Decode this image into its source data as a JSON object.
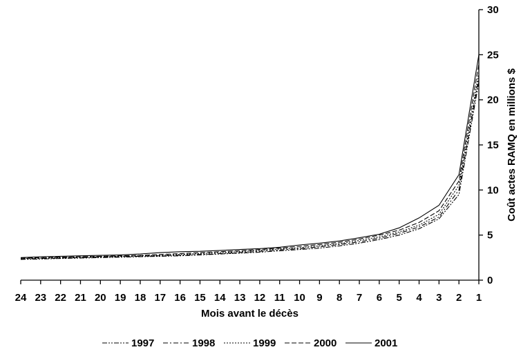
{
  "chart_data": {
    "type": "line",
    "title": "",
    "xlabel": "Mois avant le décès",
    "ylabel": "Coût actes RAMQ en millions $",
    "y_axis_side": "right",
    "x_reversed": true,
    "ylim": [
      0,
      30
    ],
    "y_ticks": [
      0,
      5,
      10,
      15,
      20,
      25,
      30
    ],
    "x": [
      24,
      23,
      22,
      21,
      20,
      19,
      18,
      17,
      16,
      15,
      14,
      13,
      12,
      11,
      10,
      9,
      8,
      7,
      6,
      5,
      4,
      3,
      2,
      1
    ],
    "grid": false,
    "legend_position": "bottom",
    "series": [
      {
        "name": "1997",
        "dash": "dash-dot-dot",
        "values": [
          2.3,
          2.35,
          2.4,
          2.45,
          2.5,
          2.55,
          2.6,
          2.65,
          2.7,
          2.8,
          2.9,
          3.0,
          3.1,
          3.25,
          3.4,
          3.55,
          3.8,
          4.1,
          4.5,
          5.0,
          5.7,
          6.8,
          9.5,
          22.0
        ]
      },
      {
        "name": "1998",
        "dash": "dash-dot",
        "values": [
          2.35,
          2.4,
          2.45,
          2.5,
          2.55,
          2.6,
          2.65,
          2.7,
          2.78,
          2.85,
          2.95,
          3.05,
          3.2,
          3.35,
          3.5,
          3.7,
          3.95,
          4.25,
          4.65,
          5.2,
          5.9,
          7.0,
          10.0,
          22.5
        ]
      },
      {
        "name": "1999",
        "dash": "dotted",
        "values": [
          2.4,
          2.45,
          2.5,
          2.55,
          2.6,
          2.65,
          2.7,
          2.75,
          2.85,
          2.95,
          3.05,
          3.15,
          3.3,
          3.45,
          3.6,
          3.8,
          4.05,
          4.4,
          4.8,
          5.35,
          6.1,
          7.3,
          10.5,
          23.0
        ]
      },
      {
        "name": "2000",
        "dash": "dashed",
        "values": [
          2.45,
          2.5,
          2.55,
          2.6,
          2.65,
          2.7,
          2.75,
          2.85,
          2.95,
          3.05,
          3.15,
          3.25,
          3.4,
          3.55,
          3.75,
          3.95,
          4.2,
          4.55,
          5.0,
          5.55,
          6.4,
          7.7,
          11.0,
          24.0
        ]
      },
      {
        "name": "2001",
        "dash": "solid",
        "values": [
          2.5,
          2.6,
          2.65,
          2.7,
          2.75,
          2.8,
          2.9,
          3.05,
          3.15,
          3.2,
          3.3,
          3.4,
          3.5,
          3.65,
          3.9,
          4.1,
          4.35,
          4.7,
          5.1,
          5.8,
          6.9,
          8.3,
          11.7,
          25.0
        ]
      }
    ]
  }
}
